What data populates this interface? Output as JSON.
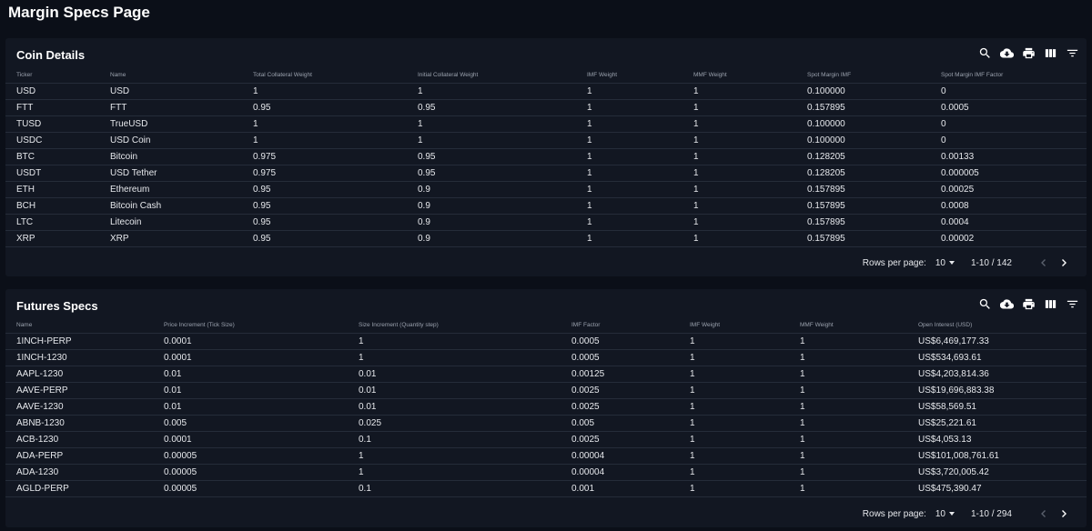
{
  "page": {
    "title": "Margin Specs Page"
  },
  "coin_details": {
    "title": "Coin Details",
    "columns": [
      "Ticker",
      "Name",
      "Total Collateral Weight",
      "Initial Collateral Weight",
      "IMF Weight",
      "MMF Weight",
      "Spot Margin IMF",
      "Spot Margin IMF Factor"
    ],
    "rows": [
      [
        "USD",
        "USD",
        "1",
        "1",
        "1",
        "1",
        "0.100000",
        "0"
      ],
      [
        "FTT",
        "FTT",
        "0.95",
        "0.95",
        "1",
        "1",
        "0.157895",
        "0.0005"
      ],
      [
        "TUSD",
        "TrueUSD",
        "1",
        "1",
        "1",
        "1",
        "0.100000",
        "0"
      ],
      [
        "USDC",
        "USD Coin",
        "1",
        "1",
        "1",
        "1",
        "0.100000",
        "0"
      ],
      [
        "BTC",
        "Bitcoin",
        "0.975",
        "0.95",
        "1",
        "1",
        "0.128205",
        "0.00133"
      ],
      [
        "USDT",
        "USD Tether",
        "0.975",
        "0.95",
        "1",
        "1",
        "0.128205",
        "0.000005"
      ],
      [
        "ETH",
        "Ethereum",
        "0.95",
        "0.9",
        "1",
        "1",
        "0.157895",
        "0.00025"
      ],
      [
        "BCH",
        "Bitcoin Cash",
        "0.95",
        "0.9",
        "1",
        "1",
        "0.157895",
        "0.0008"
      ],
      [
        "LTC",
        "Litecoin",
        "0.95",
        "0.9",
        "1",
        "1",
        "0.157895",
        "0.0004"
      ],
      [
        "XRP",
        "XRP",
        "0.95",
        "0.9",
        "1",
        "1",
        "0.157895",
        "0.00002"
      ]
    ],
    "pagination": {
      "rows_per_page_label": "Rows per page:",
      "rows_per_page": "10",
      "range": "1-10 / 142"
    }
  },
  "futures_specs": {
    "title": "Futures Specs",
    "columns": [
      "Name",
      "Price Increment (Tick Size)",
      "Size Increment (Quantity step)",
      "IMF Factor",
      "IMF Weight",
      "MMF Weight",
      "Open Interest (USD)"
    ],
    "rows": [
      [
        "1INCH-PERP",
        "0.0001",
        "1",
        "0.0005",
        "1",
        "1",
        "US$6,469,177.33"
      ],
      [
        "1INCH-1230",
        "0.0001",
        "1",
        "0.0005",
        "1",
        "1",
        "US$534,693.61"
      ],
      [
        "AAPL-1230",
        "0.01",
        "0.01",
        "0.00125",
        "1",
        "1",
        "US$4,203,814.36"
      ],
      [
        "AAVE-PERP",
        "0.01",
        "0.01",
        "0.0025",
        "1",
        "1",
        "US$19,696,883.38"
      ],
      [
        "AAVE-1230",
        "0.01",
        "0.01",
        "0.0025",
        "1",
        "1",
        "US$58,569.51"
      ],
      [
        "ABNB-1230",
        "0.005",
        "0.025",
        "0.005",
        "1",
        "1",
        "US$25,221.61"
      ],
      [
        "ACB-1230",
        "0.0001",
        "0.1",
        "0.0025",
        "1",
        "1",
        "US$4,053.13"
      ],
      [
        "ADA-PERP",
        "0.00005",
        "1",
        "0.00004",
        "1",
        "1",
        "US$101,008,761.61"
      ],
      [
        "ADA-1230",
        "0.00005",
        "1",
        "0.00004",
        "1",
        "1",
        "US$3,720,005.42"
      ],
      [
        "AGLD-PERP",
        "0.00005",
        "0.1",
        "0.001",
        "1",
        "1",
        "US$475,390.47"
      ]
    ],
    "pagination": {
      "rows_per_page_label": "Rows per page:",
      "rows_per_page": "10",
      "range": "1-10 / 294"
    }
  },
  "toolbar_icons": [
    "search-icon",
    "cloud-download-icon",
    "print-icon",
    "view-columns-icon",
    "filter-list-icon"
  ],
  "colors": {
    "background": "#0b0f18",
    "panel": "#121722",
    "text": "#e6e8ec",
    "muted": "#9aa1ad"
  }
}
